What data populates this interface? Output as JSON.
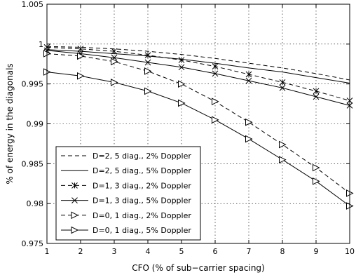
{
  "chart_data": {
    "type": "line",
    "title": "",
    "xlabel": "CFO (% of sub−carrier spacing)",
    "ylabel": "% of energy in the diagonals",
    "xlim": [
      1,
      10
    ],
    "ylim": [
      0.975,
      1.005
    ],
    "x_ticks": [
      1,
      2,
      3,
      4,
      5,
      6,
      7,
      8,
      9,
      10
    ],
    "y_ticks": [
      0.975,
      0.98,
      0.985,
      0.99,
      0.995,
      1,
      1.005
    ],
    "y_tick_labels": [
      "0.975",
      "0.98",
      "0.985",
      "0.99",
      "0.995",
      "1",
      "1.005"
    ],
    "grid": true,
    "legend_position": "bottom-left",
    "x": [
      1,
      2,
      3,
      4,
      5,
      6,
      7,
      8,
      9,
      10
    ],
    "series": [
      {
        "name": "D=2, 5 diag., 2% Doppler",
        "dash": "dashed",
        "marker": "none",
        "values": [
          0.9997,
          0.9996,
          0.9994,
          0.9991,
          0.9987,
          0.9982,
          0.9976,
          0.997,
          0.9963,
          0.9955
        ]
      },
      {
        "name": "D=2, 5 diag., 5% Doppler",
        "dash": "solid",
        "marker": "none",
        "values": [
          0.9993,
          0.9991,
          0.9988,
          0.9985,
          0.9981,
          0.9976,
          0.997,
          0.9965,
          0.9958,
          0.9951
        ]
      },
      {
        "name": "D=1, 3 diag., 2% Doppler",
        "dash": "dashed",
        "marker": "star",
        "values": [
          0.9996,
          0.9994,
          0.9991,
          0.9986,
          0.998,
          0.9972,
          0.9962,
          0.9952,
          0.9941,
          0.9929
        ]
      },
      {
        "name": "D=1, 3 diag., 5% Doppler",
        "dash": "solid",
        "marker": "x",
        "values": [
          0.9992,
          0.9988,
          0.9983,
          0.9977,
          0.9971,
          0.9963,
          0.9954,
          0.9945,
          0.9934,
          0.9923
        ]
      },
      {
        "name": "D=0, 1 diag., 2% Doppler",
        "dash": "dashed",
        "marker": "triangle",
        "values": [
          0.9988,
          0.9985,
          0.9978,
          0.9966,
          0.995,
          0.9928,
          0.9902,
          0.9874,
          0.9845,
          0.9813
        ]
      },
      {
        "name": "D=0, 1 diag., 5% Doppler",
        "dash": "solid",
        "marker": "triangle",
        "values": [
          0.9965,
          0.996,
          0.9952,
          0.9941,
          0.9926,
          0.9905,
          0.9881,
          0.9855,
          0.9828,
          0.9797
        ]
      }
    ]
  }
}
